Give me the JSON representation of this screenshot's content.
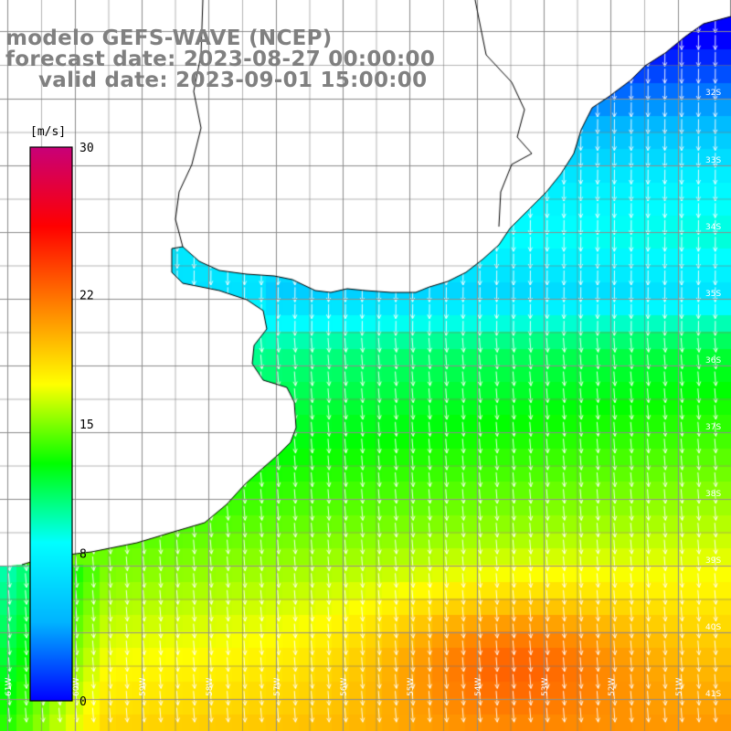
{
  "title": {
    "line1": "modelo GEFS-WAVE (NCEP)",
    "line2": "forecast date: 2023-08-27 00:00:00",
    "line3": "valid date: 2023-09-01 15:00:00"
  },
  "colorbar": {
    "unit": "[m/s]",
    "labels": [
      "30",
      "22",
      "15",
      "8",
      "0"
    ],
    "values": [
      30,
      22,
      15,
      8,
      0
    ],
    "range": [
      0,
      30
    ],
    "stops": [
      "#0000ff",
      "#00b4ff",
      "#00ffff",
      "#00ff00",
      "#ffff00",
      "#ff8000",
      "#ff0000",
      "#c80078"
    ]
  },
  "axes": {
    "lon_labels": [
      "61W",
      "60W",
      "59W",
      "58W",
      "57W",
      "56W",
      "55W",
      "54W",
      "53W",
      "52W",
      "51W"
    ],
    "lat_labels": [
      "32S",
      "33S",
      "34S",
      "35S",
      "36S",
      "37S",
      "38S",
      "39S",
      "40S",
      "41S"
    ]
  },
  "colors": {
    "land": "#ffffff",
    "coastline": "#000000",
    "grid": "#a0a0a0",
    "arrow": "#ffffff",
    "title_text": "#808080"
  }
}
